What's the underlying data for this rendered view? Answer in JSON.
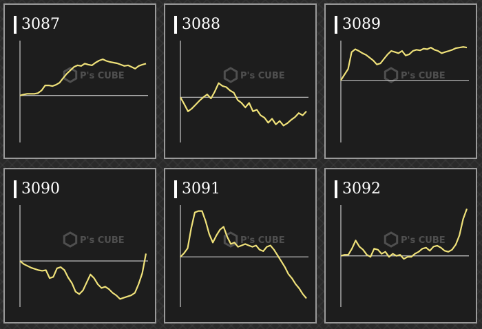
{
  "colors": {
    "background": "#2a2a2a",
    "panel": "#1d1d1d",
    "border": "#9a9a9a",
    "line": "#f0e27a",
    "axis": "#c8c8c8",
    "text": "#ffffff"
  },
  "watermark": {
    "logo_icon": "cube-logo-icon",
    "text": "P's CUBE",
    "subtext": ""
  },
  "chart_data": [
    {
      "type": "line",
      "title": "3087",
      "baseline": 0,
      "ylim": [
        -140,
        180
      ],
      "x": [
        0,
        1,
        2,
        3,
        4,
        5,
        6,
        7,
        8,
        9,
        10,
        11,
        12,
        13,
        14,
        15,
        16,
        17,
        18,
        19,
        20,
        21,
        22,
        23,
        24,
        25,
        26,
        27,
        28,
        29,
        30,
        31,
        32,
        33,
        34,
        35
      ],
      "values": [
        0,
        3,
        5,
        5,
        5,
        7,
        15,
        30,
        30,
        28,
        32,
        38,
        52,
        65,
        75,
        85,
        90,
        88,
        95,
        92,
        90,
        98,
        104,
        108,
        103,
        100,
        98,
        96,
        92,
        88,
        90,
        85,
        80,
        88,
        92,
        95
      ]
    },
    {
      "type": "line",
      "title": "3088",
      "baseline": 0,
      "ylim": [
        -80,
        110
      ],
      "x": [
        0,
        1,
        2,
        3,
        4,
        5,
        6,
        7,
        8,
        9,
        10,
        11,
        12,
        13,
        14,
        15,
        16,
        17,
        18,
        19,
        20,
        21,
        22,
        23,
        24,
        25,
        26,
        27,
        28,
        29,
        30,
        31,
        32,
        33
      ],
      "values": [
        0,
        -12,
        -25,
        -20,
        -13,
        -6,
        0,
        5,
        -2,
        10,
        25,
        20,
        18,
        12,
        8,
        -5,
        -10,
        -18,
        -10,
        -25,
        -22,
        -32,
        -36,
        -45,
        -38,
        -48,
        -42,
        -50,
        -46,
        -40,
        -35,
        -28,
        -32,
        -25
      ]
    },
    {
      "type": "line",
      "title": "3089",
      "baseline": 0,
      "ylim": [
        -110,
        80
      ],
      "x": [
        0,
        1,
        2,
        3,
        4,
        5,
        6,
        7,
        8,
        9,
        10,
        11,
        12,
        13,
        14,
        15,
        16,
        17,
        18,
        19,
        20,
        21,
        22,
        23,
        24,
        25,
        26,
        27,
        28,
        29,
        30,
        31,
        32,
        33,
        34,
        35
      ],
      "values": [
        0,
        10,
        20,
        50,
        55,
        52,
        48,
        45,
        40,
        35,
        28,
        30,
        38,
        46,
        52,
        50,
        48,
        52,
        44,
        46,
        52,
        54,
        53,
        56,
        55,
        58,
        54,
        52,
        48,
        50,
        52,
        54,
        57,
        58,
        59,
        58
      ]
    },
    {
      "type": "line",
      "title": "3090",
      "baseline": 0,
      "ylim": [
        -75,
        100
      ],
      "x": [
        0,
        1,
        2,
        3,
        4,
        5,
        6,
        7,
        8,
        9,
        10,
        11,
        12,
        13,
        14,
        15,
        16,
        17,
        18,
        19,
        20,
        21,
        22,
        23,
        24,
        25,
        26,
        27,
        28,
        29,
        30,
        31,
        32,
        33,
        34
      ],
      "values": [
        0,
        -5,
        -8,
        -11,
        -13,
        -15,
        -16,
        -15,
        -28,
        -26,
        -12,
        -10,
        -15,
        -27,
        -36,
        -50,
        -54,
        -48,
        -35,
        -22,
        -28,
        -38,
        -44,
        -42,
        -46,
        -52,
        -56,
        -62,
        -60,
        -58,
        -56,
        -52,
        -38,
        -20,
        12
      ]
    },
    {
      "type": "line",
      "title": "3091",
      "baseline": 0,
      "ylim": [
        -70,
        80
      ],
      "x": [
        0,
        1,
        2,
        3,
        4,
        5,
        6,
        7,
        8,
        9,
        10,
        11,
        12,
        13,
        14,
        15,
        16,
        17,
        18,
        19,
        20,
        21,
        22,
        23,
        24,
        25,
        26,
        27,
        28,
        29,
        30,
        31,
        32,
        33,
        34,
        35
      ],
      "values": [
        0,
        5,
        12,
        40,
        62,
        64,
        64,
        50,
        32,
        20,
        30,
        38,
        42,
        28,
        18,
        20,
        14,
        16,
        18,
        16,
        14,
        16,
        10,
        8,
        14,
        16,
        10,
        2,
        -6,
        -14,
        -24,
        -30,
        -38,
        -44,
        -52,
        -58
      ]
    },
    {
      "type": "line",
      "title": "3092",
      "baseline": 0,
      "ylim": [
        -100,
        110
      ],
      "x": [
        0,
        1,
        2,
        3,
        4,
        5,
        6,
        7,
        8,
        9,
        10,
        11,
        12,
        13,
        14,
        15,
        16,
        17,
        18,
        19,
        20,
        21,
        22,
        23,
        24,
        25,
        26,
        27,
        28,
        29,
        30,
        31,
        32,
        33,
        34
      ],
      "values": [
        0,
        2,
        2,
        14,
        30,
        18,
        12,
        2,
        -2,
        14,
        12,
        4,
        8,
        -2,
        4,
        0,
        2,
        -6,
        -2,
        -2,
        4,
        8,
        14,
        16,
        10,
        18,
        20,
        16,
        10,
        8,
        12,
        22,
        40,
        72,
        92
      ]
    }
  ]
}
